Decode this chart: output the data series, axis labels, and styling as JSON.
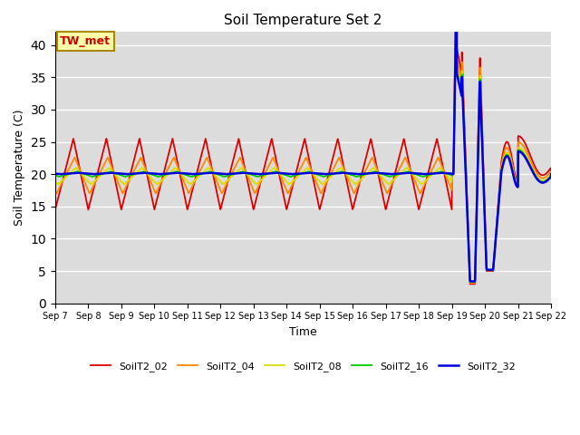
{
  "title": "Soil Temperature Set 2",
  "xlabel": "Time",
  "ylabel": "Soil Temperature (C)",
  "ylim": [
    0,
    42
  ],
  "background_color": "#dcdcdc",
  "annotation_text": "TW_met",
  "annotation_color": "#cc0000",
  "annotation_bg": "#ffffaa",
  "annotation_edge": "#aa8800",
  "legend": [
    "SoilT2_02",
    "SoilT2_04",
    "SoilT2_08",
    "SoilT2_16",
    "SoilT2_32"
  ],
  "colors": [
    "#dd0000",
    "#ff8800",
    "#dddd00",
    "#00cc00",
    "#0000dd"
  ],
  "line_widths": [
    1.3,
    1.3,
    1.3,
    1.3,
    1.8
  ],
  "x_tick_labels": [
    "Sep 7",
    "Sep 8",
    "Sep 9",
    "Sep 10",
    "Sep 11",
    "Sep 12",
    "Sep 13",
    "Sep 14",
    "Sep 15",
    "Sep 16",
    "Sep 17",
    "Sep 18",
    "Sep 19",
    "Sep 20",
    "Sep 21",
    "Sep 22"
  ],
  "x_tick_positions": [
    0,
    1,
    2,
    3,
    4,
    5,
    6,
    7,
    8,
    9,
    10,
    11,
    12,
    13,
    14,
    15
  ],
  "yticks": [
    0,
    5,
    10,
    15,
    20,
    25,
    30,
    35,
    40
  ]
}
